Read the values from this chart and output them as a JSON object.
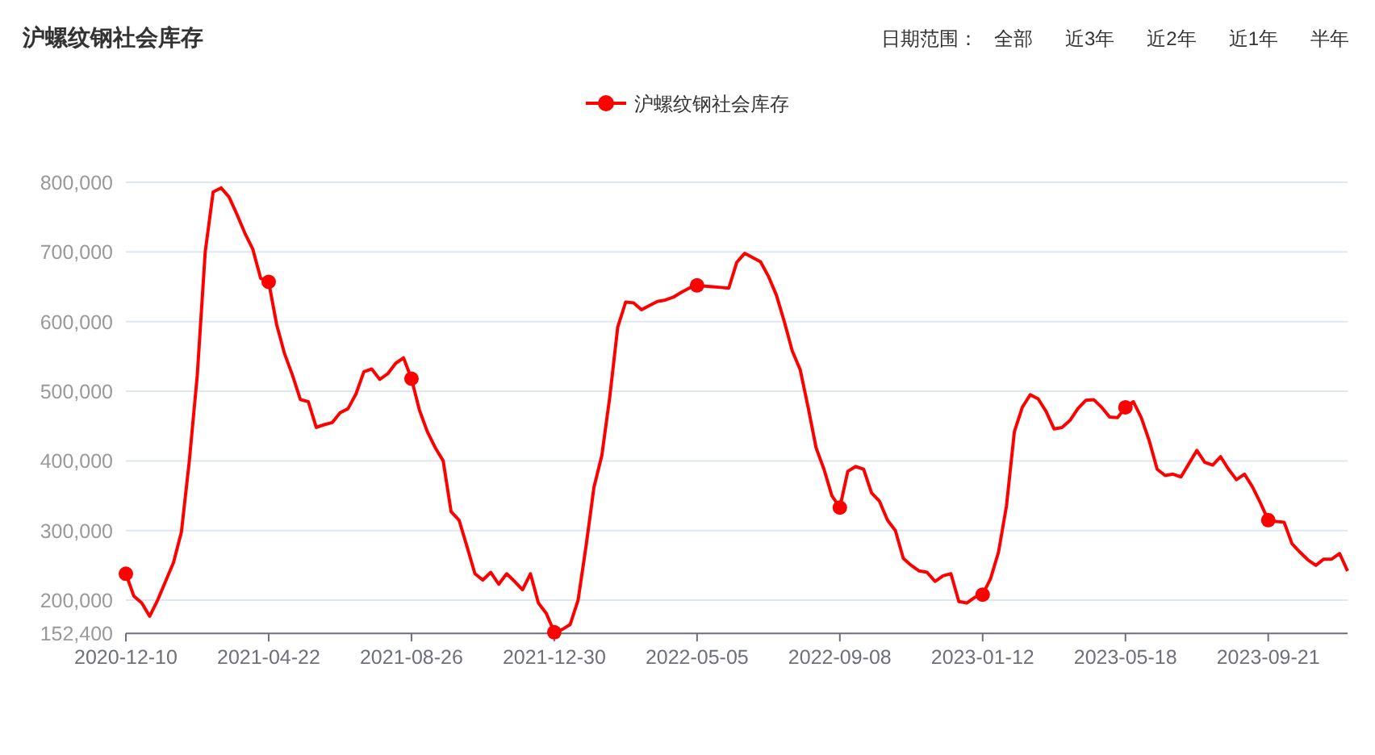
{
  "chart_data": {
    "type": "line",
    "title": "沪螺纹钢社会库存",
    "annotations": [
      "日期范围：",
      "全部",
      "近3年",
      "近2年",
      "近1年",
      "半年"
    ],
    "categories": [
      "2020-12-10",
      null,
      null,
      null,
      null,
      null,
      null,
      null,
      null,
      null,
      null,
      null,
      null,
      null,
      null,
      null,
      null,
      null,
      "2021-04-22",
      null,
      null,
      null,
      null,
      null,
      null,
      null,
      null,
      null,
      null,
      null,
      null,
      null,
      null,
      null,
      null,
      null,
      "2021-08-26",
      null,
      null,
      null,
      null,
      null,
      null,
      null,
      null,
      null,
      null,
      null,
      null,
      null,
      null,
      null,
      null,
      null,
      "2021-12-30",
      null,
      null,
      null,
      null,
      null,
      null,
      null,
      null,
      null,
      null,
      null,
      null,
      null,
      null,
      null,
      null,
      null,
      "2022-05-05",
      null,
      null,
      null,
      null,
      null,
      null,
      null,
      null,
      null,
      null,
      null,
      null,
      null,
      null,
      null,
      null,
      null,
      "2022-09-08",
      null,
      null,
      null,
      null,
      null,
      null,
      null,
      null,
      null,
      null,
      null,
      null,
      null,
      null,
      null,
      null,
      null,
      "2023-01-12",
      null,
      null,
      null,
      null,
      null,
      null,
      null,
      null,
      null,
      null,
      null,
      null,
      null,
      null,
      null,
      null,
      null,
      "2023-05-18",
      null,
      null,
      null,
      null,
      null,
      null,
      null,
      null,
      null,
      null,
      null,
      null,
      null,
      null,
      null,
      null,
      null,
      "2023-09-21",
      null,
      null,
      null,
      null,
      null,
      null,
      null,
      null,
      null,
      null
    ],
    "series": [
      {
        "name": "沪螺纹钢社会库存",
        "color": "#ff0000",
        "values": [
          238000,
          206000,
          196000,
          177000,
          200000,
          227000,
          254000,
          298000,
          400000,
          523000,
          700000,
          786000,
          792000,
          779000,
          754000,
          727000,
          704000,
          662000,
          657000,
          596000,
          554000,
          523000,
          488000,
          485000,
          448000,
          452000,
          455000,
          469000,
          475000,
          496000,
          528000,
          532000,
          517000,
          525000,
          540000,
          548000,
          518000,
          473000,
          442000,
          419000,
          400000,
          327000,
          315000,
          277000,
          238000,
          229000,
          240000,
          223000,
          238000,
          227000,
          215000,
          238000,
          196000,
          181000,
          154000,
          158000,
          165000,
          200000,
          277000,
          362000,
          408000,
          492000,
          592000,
          628000,
          627000,
          617000,
          623000,
          629000,
          631000,
          635000,
          642000,
          648000,
          652000,
          651000,
          650000,
          649000,
          648000,
          685000,
          698000,
          692000,
          686000,
          665000,
          638000,
          600000,
          558000,
          531000,
          477000,
          419000,
          388000,
          350000,
          333000,
          385000,
          392000,
          388000,
          354000,
          342000,
          315000,
          300000,
          260000,
          250000,
          242000,
          240000,
          227000,
          235000,
          238000,
          198000,
          196000,
          204000,
          208000,
          231000,
          269000,
          335000,
          442000,
          477000,
          495000,
          489000,
          471000,
          446000,
          448000,
          458000,
          475000,
          487000,
          488000,
          477000,
          463000,
          462000,
          477000,
          485000,
          462000,
          429000,
          388000,
          379000,
          381000,
          377000,
          396000,
          415000,
          398000,
          394000,
          406000,
          388000,
          373000,
          381000,
          363000,
          340000,
          315000,
          313000,
          312000,
          281000,
          269000,
          258000,
          250000,
          259000,
          259000,
          267000,
          242000
        ]
      }
    ],
    "ylim": [
      152400,
      800000
    ],
    "yticks": [
      {
        "value": 152400,
        "label": "152,400"
      },
      {
        "value": 200000,
        "label": "200,000"
      },
      {
        "value": 300000,
        "label": "300,000"
      },
      {
        "value": 400000,
        "label": "400,000"
      },
      {
        "value": 500000,
        "label": "500,000"
      },
      {
        "value": 600000,
        "label": "600,000"
      },
      {
        "value": 700000,
        "label": "700,000"
      },
      {
        "value": 800000,
        "label": "800,000"
      }
    ],
    "grid": "y",
    "legend": "top",
    "line_style": "solid"
  }
}
